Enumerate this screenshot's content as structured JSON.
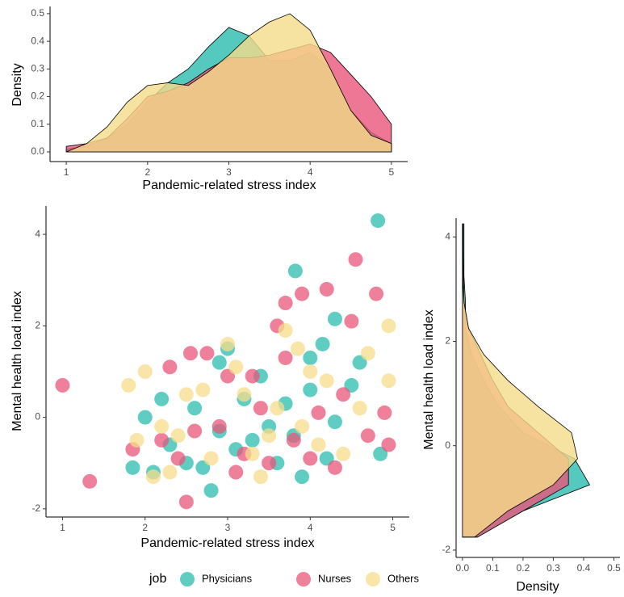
{
  "chart_data": [
    {
      "type": "density",
      "x_label": "Pandemic-related stress index",
      "y_label": "Density",
      "x": [
        1,
        1.25,
        1.5,
        1.75,
        2,
        2.25,
        2.5,
        2.75,
        3,
        3.25,
        3.5,
        3.75,
        4,
        4.25,
        4.5,
        4.75,
        5
      ],
      "series": [
        {
          "color": "#2bbcad",
          "values": [
            0.01,
            0.02,
            0.05,
            0.1,
            0.18,
            0.25,
            0.3,
            0.38,
            0.45,
            0.42,
            0.33,
            0.33,
            0.36,
            0.3,
            0.15,
            0.07,
            0.03
          ]
        },
        {
          "color": "#e8557a",
          "values": [
            0.02,
            0.03,
            0.05,
            0.12,
            0.2,
            0.22,
            0.25,
            0.3,
            0.34,
            0.34,
            0.35,
            0.37,
            0.39,
            0.36,
            0.28,
            0.2,
            0.1
          ]
        },
        {
          "color": "#f5dc8a",
          "values": [
            0.0,
            0.03,
            0.09,
            0.18,
            0.24,
            0.25,
            0.24,
            0.29,
            0.35,
            0.42,
            0.47,
            0.5,
            0.44,
            0.3,
            0.15,
            0.06,
            0.03
          ]
        }
      ],
      "xlim": [
        0.8,
        5.2
      ],
      "ylim": [
        -0.035,
        0.526
      ],
      "xticks": [
        1,
        2,
        3,
        4,
        5
      ],
      "yticks": [
        {
          "value": 0,
          "label": "0.0"
        },
        {
          "value": 0.1,
          "label": "0.1"
        },
        {
          "value": 0.2,
          "label": "0.2"
        },
        {
          "value": 0.3,
          "label": "0.3"
        },
        {
          "value": 0.4,
          "label": "0.4"
        },
        {
          "value": 0.5,
          "label": "0.5"
        }
      ]
    },
    {
      "type": "scatter",
      "x_label": "Pandemic-related stress index",
      "y_label": "Mental health load index",
      "legend_title": "job",
      "series": [
        {
          "name": "Physicians",
          "color": "#2bbcad",
          "x": [
            4.82,
            3.82,
            4.3,
            4.15,
            4.0,
            3.0,
            2.9,
            3.4,
            2.2,
            2.0,
            1.85,
            2.3,
            2.5,
            2.8,
            2.9,
            3.1,
            3.2,
            3.5,
            3.8,
            3.9,
            4.0,
            4.2,
            4.5,
            4.6,
            4.85,
            3.6,
            2.6,
            3.3,
            2.1,
            4.3,
            3.7,
            2.7
          ],
          "y": [
            4.3,
            3.2,
            2.15,
            1.6,
            1.3,
            1.5,
            1.2,
            0.9,
            0.4,
            0.0,
            -1.1,
            -0.6,
            -1.0,
            -1.6,
            -0.3,
            -0.7,
            0.4,
            -0.2,
            -0.4,
            -1.3,
            0.6,
            -0.9,
            0.7,
            1.2,
            -0.8,
            -1.0,
            0.2,
            -0.5,
            -1.2,
            -0.1,
            0.3,
            -1.1
          ]
        },
        {
          "name": "Nurses",
          "color": "#e8557a",
          "x": [
            1.0,
            1.33,
            2.5,
            2.55,
            2.75,
            3.7,
            3.9,
            4.2,
            4.55,
            4.8,
            4.5,
            3.6,
            3.7,
            3.0,
            2.2,
            2.4,
            2.9,
            3.2,
            3.4,
            3.5,
            3.8,
            4.1,
            4.4,
            4.7,
            4.9,
            4.95,
            1.85,
            2.3,
            3.1,
            4.3,
            2.6,
            3.3,
            4.0
          ],
          "y": [
            0.7,
            -1.4,
            -1.85,
            1.4,
            1.4,
            2.5,
            2.7,
            2.8,
            3.45,
            2.7,
            2.1,
            2.0,
            1.3,
            0.9,
            -0.5,
            -0.9,
            -0.2,
            -0.8,
            0.2,
            -1.0,
            -0.5,
            0.1,
            0.5,
            -0.4,
            0.1,
            -0.6,
            -0.7,
            1.1,
            -1.2,
            -1.1,
            -0.3,
            0.9,
            -0.9
          ]
        },
        {
          "name": "Others",
          "color": "#f5dc8a",
          "x": [
            1.8,
            2.0,
            1.9,
            2.1,
            2.3,
            2.4,
            2.7,
            3.0,
            3.1,
            3.2,
            3.5,
            3.4,
            3.7,
            3.85,
            4.0,
            4.2,
            4.4,
            4.7,
            4.95,
            4.95,
            2.5,
            2.8,
            3.6,
            3.9,
            4.1,
            3.3,
            2.2,
            4.6
          ],
          "y": [
            0.7,
            1.0,
            -0.5,
            -1.3,
            -1.2,
            -0.4,
            0.6,
            1.6,
            1.1,
            0.5,
            -0.4,
            -1.3,
            1.9,
            1.5,
            1.0,
            0.8,
            -0.8,
            1.4,
            2.0,
            0.8,
            0.5,
            -0.9,
            0.2,
            -0.2,
            -0.6,
            -0.8,
            -0.2,
            0.2
          ]
        }
      ],
      "xlim": [
        0.8,
        5.2
      ],
      "ylim": [
        -2.18,
        4.62
      ],
      "xticks": [
        1,
        2,
        3,
        4,
        5
      ],
      "yticks": [
        -2,
        0,
        2,
        4
      ]
    },
    {
      "type": "density",
      "x_label": "Density",
      "y_label": "Mental health load index",
      "y": [
        -1.75,
        -1.25,
        -0.75,
        -0.25,
        0.25,
        0.75,
        1.25,
        1.75,
        2.25,
        2.75,
        3.25,
        3.75,
        4.25
      ],
      "series": [
        {
          "color": "#2bbcad",
          "values": [
            0.05,
            0.2,
            0.42,
            0.37,
            0.2,
            0.12,
            0.07,
            0.03,
            0.01,
            0.01,
            0.005,
            0.005,
            0.005
          ]
        },
        {
          "color": "#e8557a",
          "values": [
            0.05,
            0.2,
            0.35,
            0.35,
            0.25,
            0.15,
            0.1,
            0.06,
            0.02,
            0.005,
            0.003,
            0.002,
            0.002
          ]
        },
        {
          "color": "#f5dc8a",
          "values": [
            0.04,
            0.15,
            0.3,
            0.38,
            0.36,
            0.25,
            0.15,
            0.07,
            0.02,
            0.005,
            0,
            0,
            0
          ]
        }
      ],
      "xlim": [
        -0.021,
        0.52
      ],
      "ylim": [
        -2.14,
        4.36
      ],
      "xticks": [
        {
          "value": 0,
          "label": "0.0"
        },
        {
          "value": 0.1,
          "label": "0.1"
        },
        {
          "value": 0.2,
          "label": "0.2"
        },
        {
          "value": 0.3,
          "label": "0.3"
        },
        {
          "value": 0.4,
          "label": "0.4"
        },
        {
          "value": 0.5,
          "label": "0.5"
        }
      ],
      "yticks": [
        -2,
        0,
        2,
        4
      ]
    }
  ]
}
